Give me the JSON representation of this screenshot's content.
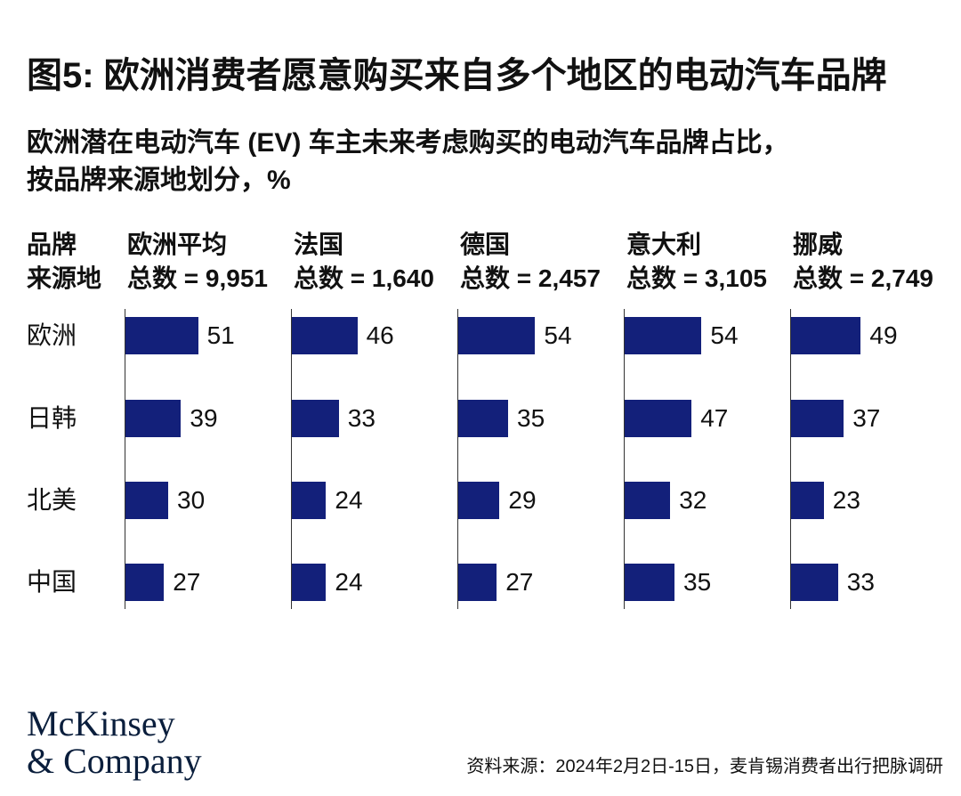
{
  "title": "图5: 欧洲消费者愿意购买来自多个地区的电动汽车品牌",
  "subtitle_line1": "欧洲潜在电动汽车 (EV) 车主未来考虑购买的电动汽车品牌占比，",
  "subtitle_line2": "按品牌来源地划分，%",
  "row_header": [
    "品牌",
    "来源地"
  ],
  "bar_color": "#13207a",
  "logo": [
    "McKinsey",
    "& Company"
  ],
  "source": "资料来源：2024年2月2日-15日，麦肯锡消费者出行把脉调研",
  "chart_data": {
    "type": "bar",
    "orientation": "horizontal",
    "categories": [
      "欧洲",
      "日韩",
      "北美",
      "中国"
    ],
    "xlim": [
      0,
      100
    ],
    "series": [
      {
        "name": "欧洲平均",
        "total": "总数 = 9,951",
        "values": [
          51,
          39,
          30,
          27
        ]
      },
      {
        "name": "法国",
        "total": "总数 = 1,640",
        "values": [
          46,
          33,
          24,
          24
        ]
      },
      {
        "name": "德国",
        "total": "总数 = 2,457",
        "values": [
          54,
          35,
          29,
          27
        ]
      },
      {
        "name": "意大利",
        "total": "总数 = 3,105",
        "values": [
          54,
          47,
          32,
          35
        ]
      },
      {
        "name": "挪威",
        "total": "总数 = 2,749",
        "values": [
          49,
          37,
          23,
          33
        ]
      }
    ]
  }
}
